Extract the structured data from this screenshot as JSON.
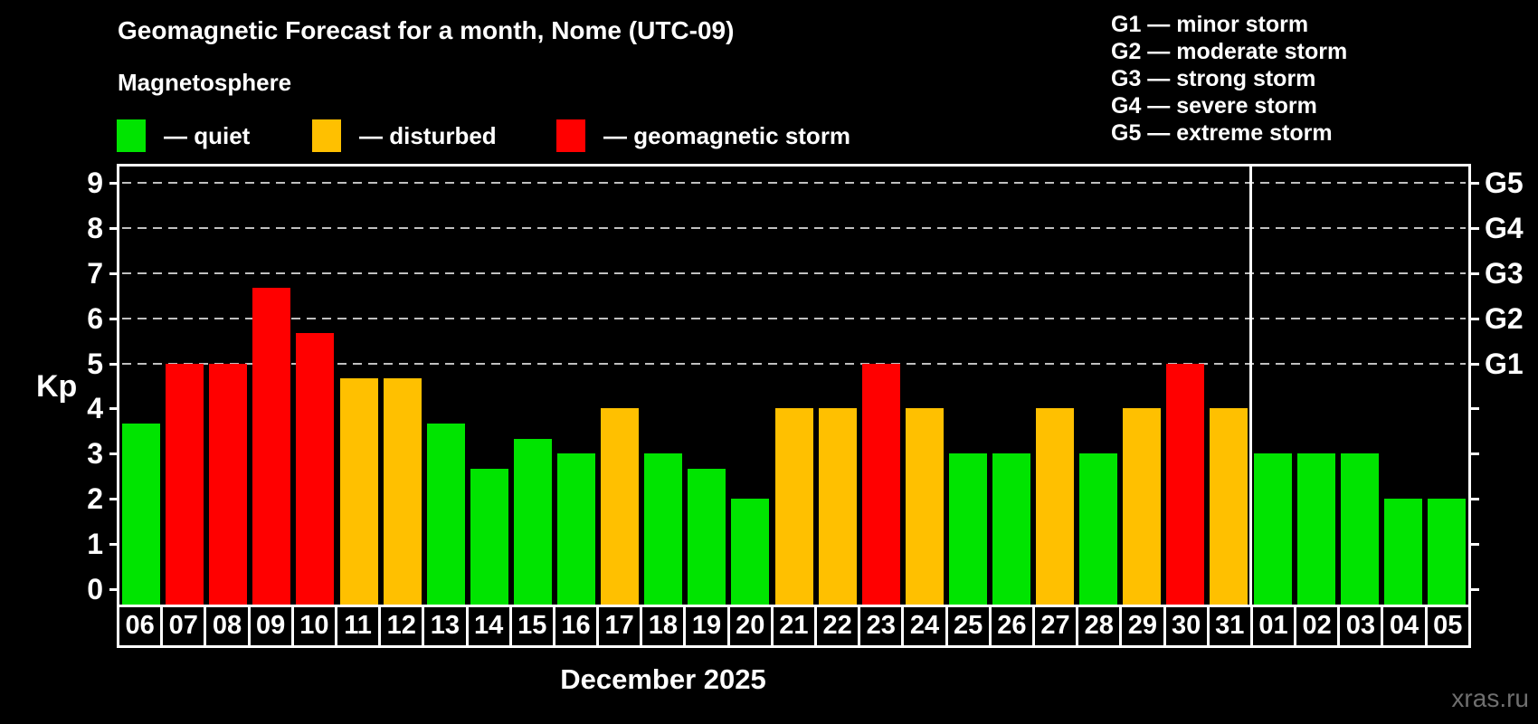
{
  "header": {
    "title": "Geomagnetic Forecast for a month, Nome (UTC-09)",
    "subtitle": "Magnetosphere"
  },
  "legend": {
    "items": [
      {
        "key": "quiet",
        "label": "— quiet",
        "color": "#00e400"
      },
      {
        "key": "disturbed",
        "label": "— disturbed",
        "color": "#ffc000"
      },
      {
        "key": "storm",
        "label": "— geomagnetic storm",
        "color": "#ff0000"
      }
    ]
  },
  "storm_scale_legend": {
    "items": [
      "G1 — minor storm",
      "G2 — moderate storm",
      "G3 — strong storm",
      "G4 — severe storm",
      "G5 — extreme storm"
    ]
  },
  "footer": {
    "watermark": "xras.ru"
  },
  "chart_data": {
    "type": "bar",
    "title": "Geomagnetic Forecast for a month, Nome (UTC-09)",
    "ylabel": "Kp",
    "xlabel": "December 2025",
    "ylim": [
      0,
      9
    ],
    "yticks": [
      "0",
      "1",
      "2",
      "3",
      "4",
      "5",
      "6",
      "7",
      "8",
      "9"
    ],
    "gridline_levels": [
      5,
      6,
      7,
      8,
      9
    ],
    "grid": "dashed horizontal lines at storm levels only",
    "legend_position": "top-left",
    "right_axis": [
      {
        "level": 5,
        "label": "G1"
      },
      {
        "level": 6,
        "label": "G2"
      },
      {
        "level": 7,
        "label": "G3"
      },
      {
        "level": 8,
        "label": "G4"
      },
      {
        "level": 9,
        "label": "G5"
      }
    ],
    "categories": [
      "06",
      "07",
      "08",
      "09",
      "10",
      "11",
      "12",
      "13",
      "14",
      "15",
      "16",
      "17",
      "18",
      "19",
      "20",
      "21",
      "22",
      "23",
      "24",
      "25",
      "26",
      "27",
      "28",
      "29",
      "30",
      "31",
      "01",
      "02",
      "03",
      "04",
      "05"
    ],
    "values": [
      3.67,
      5,
      5,
      6.67,
      5.67,
      4.67,
      4.67,
      3.67,
      2.67,
      3.33,
      3,
      4,
      3,
      2.67,
      2,
      4,
      4,
      5,
      4,
      3,
      3,
      4,
      3,
      4,
      5,
      4,
      3,
      3,
      3,
      2,
      2
    ],
    "statuses": [
      "quiet",
      "storm",
      "storm",
      "storm",
      "storm",
      "disturbed",
      "disturbed",
      "quiet",
      "quiet",
      "quiet",
      "quiet",
      "disturbed",
      "quiet",
      "quiet",
      "quiet",
      "disturbed",
      "disturbed",
      "storm",
      "disturbed",
      "quiet",
      "quiet",
      "disturbed",
      "quiet",
      "disturbed",
      "storm",
      "disturbed",
      "quiet",
      "quiet",
      "quiet",
      "quiet",
      "quiet"
    ],
    "status_colors": {
      "quiet": "#00e400",
      "disturbed": "#ffc000",
      "storm": "#ff0000"
    },
    "divider_after_index": 25
  }
}
